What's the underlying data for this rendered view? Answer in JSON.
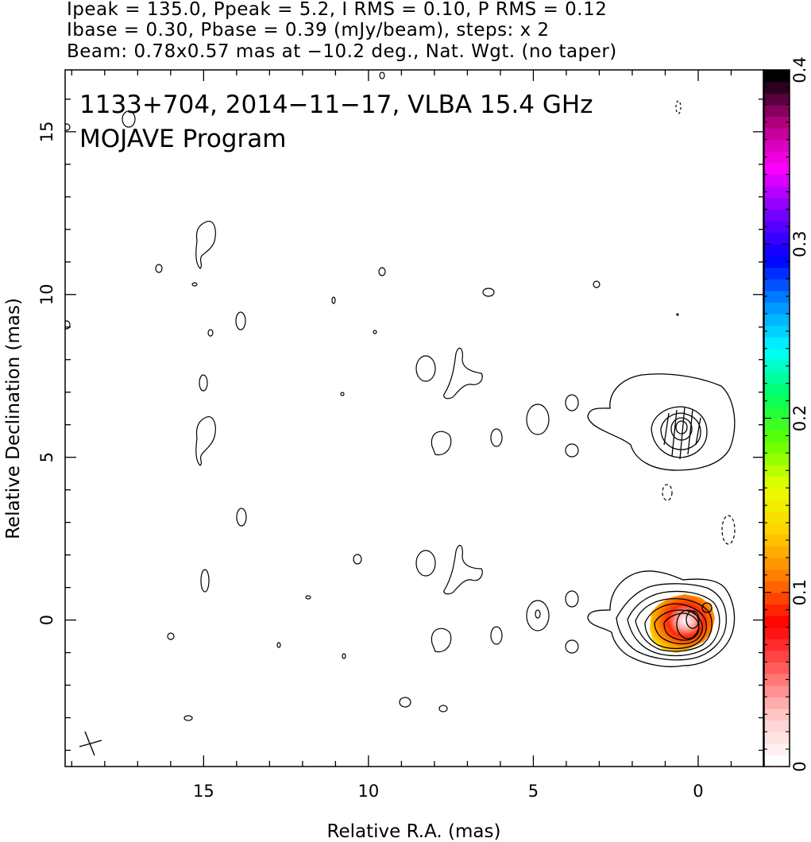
{
  "header": {
    "line1": "Ipeak = 135.0, Ppeak = 5.2, I RMS = 0.10, P RMS = 0.12",
    "line2": "Ibase = 0.30, Pbase = 0.39 (mJy/beam), steps: x 2",
    "line3": "Beam: 0.78x0.57 mas at −10.2 deg., Nat. Wgt. (no taper)"
  },
  "annotation": {
    "line1": "1133+704, 2014−11−17, VLBA 15.4 GHz",
    "line2": "MOJAVE Program"
  },
  "chart_data": {
    "type": "heatmap",
    "xlabel": "Relative R.A. (mas)",
    "ylabel": "Relative Declination (mas)",
    "xlim": [
      19.2,
      -2.0
    ],
    "ylim": [
      -4.5,
      16.9
    ],
    "x_ticks": [
      15,
      10,
      5,
      0
    ],
    "y_ticks": [
      0,
      5,
      10,
      15
    ],
    "x_tick_labels": [
      "15",
      "10",
      "5",
      "0"
    ],
    "y_tick_labels": [
      "0",
      "5",
      "10",
      "15"
    ],
    "colorbar": {
      "range": [
        0,
        0.4
      ],
      "ticks": [
        0,
        0.1,
        0.2,
        0.3,
        0.4
      ],
      "tick_labels": [
        "0",
        "0.1",
        "0.2",
        "0.3",
        "0.4"
      ],
      "colormap": [
        "#ffffff",
        "#ffc8c8",
        "#ff6060",
        "#ff0000",
        "#ff7a00",
        "#ffd000",
        "#e8ff00",
        "#60ff00",
        "#00ff60",
        "#00ffff",
        "#0090ff",
        "#0000ff",
        "#7a00ff",
        "#ff00ff",
        "#b0007a",
        "#000000"
      ]
    },
    "peak_position": [
      0.0,
      0.0
    ],
    "secondary_peak_position": [
      0.5,
      5.8
    ],
    "beam": {
      "major_mas": 0.78,
      "minor_mas": 0.57,
      "pa_deg": -10.2,
      "center": [
        18.5,
        -3.8
      ]
    },
    "ipeak_mJy_per_beam": 135.0,
    "ppeak_mJy_per_beam": 5.2,
    "i_rms": 0.1,
    "p_rms": 0.12,
    "ibase": 0.3,
    "pbase": 0.39,
    "contour_step_factor": 2,
    "grid": false
  }
}
